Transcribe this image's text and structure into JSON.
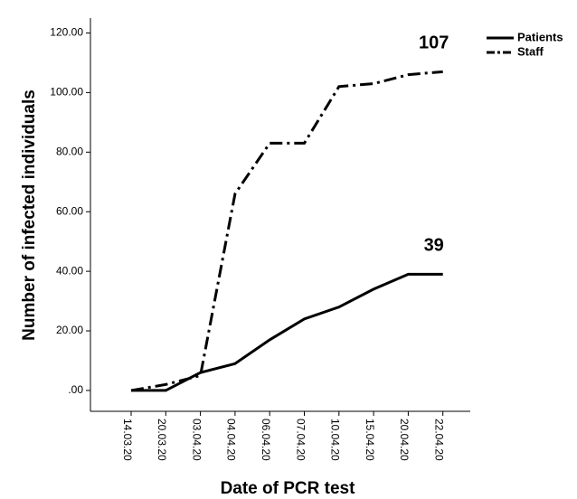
{
  "chart_data": {
    "type": "line",
    "x_label": "Date of PCR test",
    "y_label": "Number of infected individuals",
    "categories": [
      "14.03.20",
      "20.03.20",
      "03.04.20",
      "04.04.20",
      "06.04.20",
      "07.04.20",
      "10.04.20",
      "15.04.20",
      "20.04.20",
      "22.04.20"
    ],
    "series": [
      {
        "name": "Patients",
        "color": "#000000",
        "dash": "solid",
        "values": [
          0,
          0,
          6,
          9,
          17,
          24,
          28,
          34,
          39,
          39
        ]
      },
      {
        "name": "Staff",
        "color": "#000000",
        "dash": "dash-dot",
        "values": [
          0,
          2,
          5,
          66,
          83,
          83,
          102,
          103,
          106,
          107
        ]
      }
    ],
    "annotations": [
      "107",
      "39"
    ],
    "ylim": [
      -7,
      125
    ],
    "yticks": [
      {
        "value": 0,
        "label": ".00"
      },
      {
        "value": 20,
        "label": "20.00"
      },
      {
        "value": 40,
        "label": "40.00"
      },
      {
        "value": 60,
        "label": "60.00"
      },
      {
        "value": 80,
        "label": "80.00"
      },
      {
        "value": 100,
        "label": "100.00"
      },
      {
        "value": 120,
        "label": "120.00"
      }
    ],
    "legend": "top-right"
  }
}
